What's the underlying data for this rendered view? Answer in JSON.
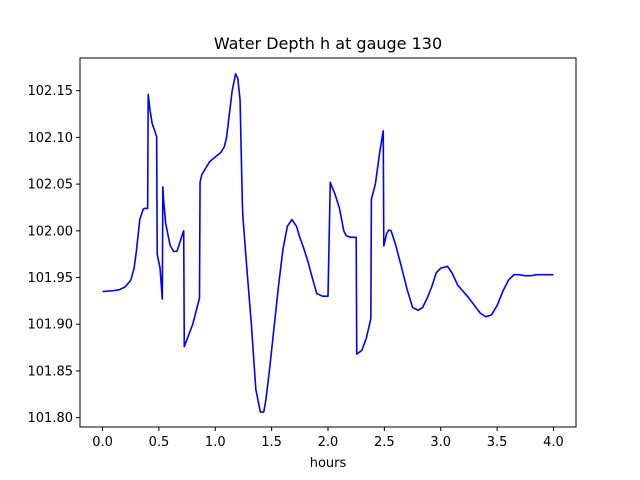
{
  "chart_data": {
    "type": "line",
    "title": "Water Depth h at gauge 130",
    "xlabel": "hours",
    "ylabel": "",
    "xlim": [
      -0.2,
      4.2
    ],
    "ylim": [
      101.79,
      102.185
    ],
    "xticks": [
      0.0,
      0.5,
      1.0,
      1.5,
      2.0,
      2.5,
      3.0,
      3.5,
      4.0
    ],
    "xtick_labels": [
      "0.0",
      "0.5",
      "1.0",
      "1.5",
      "2.0",
      "2.5",
      "3.0",
      "3.5",
      "4.0"
    ],
    "yticks": [
      101.8,
      101.85,
      101.9,
      101.95,
      102.0,
      102.05,
      102.1,
      102.15
    ],
    "ytick_labels": [
      "101.80",
      "101.85",
      "101.90",
      "101.95",
      "102.00",
      "102.05",
      "102.10",
      "102.15"
    ],
    "grid": false,
    "colors": {
      "line": "#0000ff",
      "axes": "#000000",
      "background": "#ffffff"
    },
    "series": [
      {
        "name": "",
        "x": [
          0.0,
          0.1,
          0.15,
          0.2,
          0.25,
          0.28,
          0.3,
          0.33,
          0.36,
          0.37,
          0.4,
          0.405,
          0.42,
          0.44,
          0.48,
          0.485,
          0.49,
          0.51,
          0.53,
          0.535,
          0.54,
          0.56,
          0.6,
          0.63,
          0.66,
          0.7,
          0.72,
          0.725,
          0.8,
          0.86,
          0.865,
          0.88,
          0.92,
          0.95,
          1.0,
          1.05,
          1.08,
          1.1,
          1.12,
          1.15,
          1.18,
          1.2,
          1.22,
          1.24,
          1.245,
          1.28,
          1.32,
          1.36,
          1.4,
          1.43,
          1.45,
          1.48,
          1.52,
          1.56,
          1.6,
          1.64,
          1.68,
          1.72,
          1.75,
          1.78,
          1.82,
          1.86,
          1.9,
          1.95,
          2.0,
          2.02,
          2.025,
          2.06,
          2.1,
          2.14,
          2.16,
          2.2,
          2.25,
          2.255,
          2.3,
          2.34,
          2.38,
          2.385,
          2.42,
          2.46,
          2.49,
          2.495,
          2.52,
          2.54,
          2.56,
          2.6,
          2.65,
          2.7,
          2.75,
          2.8,
          2.84,
          2.88,
          2.92,
          2.96,
          3.0,
          3.03,
          3.06,
          3.1,
          3.15,
          3.2,
          3.25,
          3.3,
          3.35,
          3.4,
          3.45,
          3.5,
          3.55,
          3.6,
          3.65,
          3.7,
          3.75,
          3.8,
          3.85,
          3.9,
          3.95,
          4.0
        ],
        "values": [
          101.935,
          101.936,
          101.937,
          101.94,
          101.947,
          101.96,
          101.978,
          102.012,
          102.023,
          102.024,
          102.024,
          102.146,
          102.13,
          102.115,
          102.101,
          101.975,
          101.972,
          101.96,
          101.927,
          102.047,
          102.035,
          102.008,
          101.984,
          101.978,
          101.978,
          101.993,
          102.0,
          101.876,
          101.9,
          101.928,
          102.052,
          102.06,
          102.068,
          102.074,
          102.079,
          102.084,
          102.09,
          102.1,
          102.12,
          102.15,
          102.168,
          102.163,
          102.14,
          102.03,
          102.015,
          101.96,
          101.9,
          101.83,
          101.806,
          101.806,
          101.82,
          101.85,
          101.895,
          101.94,
          101.98,
          102.005,
          102.012,
          102.005,
          101.993,
          101.983,
          101.968,
          101.95,
          101.933,
          101.93,
          101.93,
          102.052,
          102.05,
          102.04,
          102.025,
          102.0,
          101.995,
          101.993,
          101.993,
          101.868,
          101.872,
          101.885,
          101.906,
          102.034,
          102.05,
          102.085,
          102.107,
          101.984,
          101.997,
          102.001,
          102.0,
          101.985,
          101.962,
          101.938,
          101.918,
          101.915,
          101.918,
          101.928,
          101.94,
          101.955,
          101.96,
          101.961,
          101.962,
          101.955,
          101.942,
          101.935,
          101.928,
          101.92,
          101.912,
          101.908,
          101.91,
          101.92,
          101.935,
          101.947,
          101.953,
          101.953,
          101.952,
          101.952,
          101.953,
          101.953,
          101.953,
          101.953
        ]
      }
    ]
  }
}
